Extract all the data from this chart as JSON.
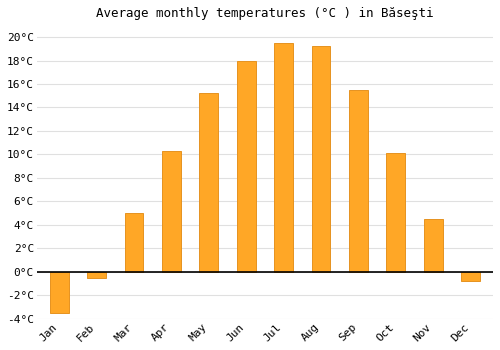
{
  "title": "Average monthly temperatures (°C ) in Băseşti",
  "months": [
    "Jan",
    "Feb",
    "Mar",
    "Apr",
    "May",
    "Jun",
    "Jul",
    "Aug",
    "Sep",
    "Oct",
    "Nov",
    "Dec"
  ],
  "values": [
    -3.5,
    -0.5,
    5.0,
    10.3,
    15.2,
    18.0,
    19.5,
    19.2,
    15.5,
    10.1,
    4.5,
    -0.8
  ],
  "bar_color": "#FFA726",
  "bar_edge_color": "#E69320",
  "ylim": [
    -4,
    21
  ],
  "yticks": [
    -4,
    -2,
    0,
    2,
    4,
    6,
    8,
    10,
    12,
    14,
    16,
    18,
    20
  ],
  "background_color": "#ffffff",
  "plot_bg_color": "#ffffff",
  "grid_color": "#e0e0e0",
  "title_fontsize": 9,
  "tick_fontsize": 8,
  "figsize": [
    5.0,
    3.5
  ],
  "dpi": 100
}
